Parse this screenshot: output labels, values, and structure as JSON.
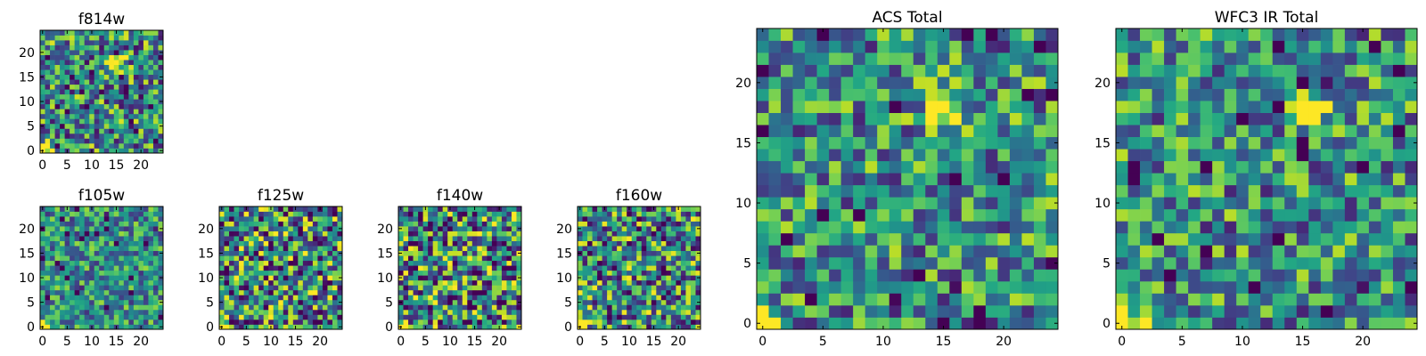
{
  "chart_data": [
    {
      "id": "f814w",
      "type": "heatmap",
      "title": "f814w",
      "xticks": [
        "0",
        "5",
        "10",
        "15",
        "20"
      ],
      "yticks": [
        "0",
        "5",
        "10",
        "15",
        "20"
      ],
      "grid_size": 25,
      "xlim": [
        0,
        24
      ],
      "ylim": [
        0,
        24
      ],
      "colormap": "viridis",
      "peaks": [
        {
          "x": 15,
          "y": 18,
          "value": 1.0
        },
        {
          "x": 0,
          "y": 0,
          "value": 1.0
        }
      ],
      "noise_level": 0.45,
      "seed": 814
    },
    {
      "id": "f105w",
      "type": "heatmap",
      "title": "f105w",
      "xticks": [
        "0",
        "5",
        "10",
        "15",
        "20"
      ],
      "yticks": [
        "0",
        "5",
        "10",
        "15",
        "20"
      ],
      "grid_size": 25,
      "xlim": [
        0,
        24
      ],
      "ylim": [
        0,
        24
      ],
      "colormap": "viridis",
      "peaks": [
        {
          "x": 0,
          "y": 0,
          "value": 1.0
        }
      ],
      "noise_level": 0.35,
      "seed": 105
    },
    {
      "id": "f125w",
      "type": "heatmap",
      "title": "f125w",
      "xticks": [
        "0",
        "5",
        "10",
        "15",
        "20"
      ],
      "yticks": [
        "0",
        "5",
        "10",
        "15",
        "20"
      ],
      "grid_size": 25,
      "xlim": [
        0,
        24
      ],
      "ylim": [
        0,
        24
      ],
      "colormap": "viridis",
      "peaks": [
        {
          "x": 0,
          "y": 0,
          "value": 1.0
        }
      ],
      "noise_level": 0.55,
      "seed": 125
    },
    {
      "id": "f140w",
      "type": "heatmap",
      "title": "f140w",
      "xticks": [
        "0",
        "5",
        "10",
        "15",
        "20"
      ],
      "yticks": [
        "0",
        "5",
        "10",
        "15",
        "20"
      ],
      "grid_size": 25,
      "xlim": [
        0,
        24
      ],
      "ylim": [
        0,
        24
      ],
      "colormap": "viridis",
      "peaks": [
        {
          "x": 0,
          "y": 0,
          "value": 1.0
        }
      ],
      "noise_level": 0.55,
      "seed": 140
    },
    {
      "id": "f160w",
      "type": "heatmap",
      "title": "f160w",
      "xticks": [
        "0",
        "5",
        "10",
        "15",
        "20"
      ],
      "yticks": [
        "0",
        "5",
        "10",
        "15",
        "20"
      ],
      "grid_size": 25,
      "xlim": [
        0,
        24
      ],
      "ylim": [
        0,
        24
      ],
      "colormap": "viridis",
      "peaks": [
        {
          "x": 0,
          "y": 0,
          "value": 1.0
        }
      ],
      "noise_level": 0.5,
      "seed": 160
    },
    {
      "id": "acs-total",
      "type": "heatmap",
      "title": "ACS Total",
      "xticks": [
        "0",
        "5",
        "10",
        "15",
        "20"
      ],
      "yticks": [
        "0",
        "5",
        "10",
        "15",
        "20"
      ],
      "grid_size": 25,
      "xlim": [
        0,
        24
      ],
      "ylim": [
        0,
        24
      ],
      "colormap": "viridis",
      "peaks": [
        {
          "x": 15,
          "y": 18,
          "value": 1.0
        },
        {
          "x": 0,
          "y": 0,
          "value": 1.0
        }
      ],
      "noise_level": 0.4,
      "seed": 7001
    },
    {
      "id": "wfc3-ir-total",
      "type": "heatmap",
      "title": "WFC3 IR Total",
      "xticks": [
        "0",
        "5",
        "10",
        "15",
        "20"
      ],
      "yticks": [
        "0",
        "5",
        "10",
        "15",
        "20"
      ],
      "grid_size": 25,
      "xlim": [
        0,
        24
      ],
      "ylim": [
        0,
        24
      ],
      "colormap": "viridis",
      "peaks": [
        {
          "x": 15,
          "y": 18,
          "value": 1.0
        },
        {
          "x": 0,
          "y": 0,
          "value": 1.0
        }
      ],
      "noise_level": 0.4,
      "seed": 7002
    }
  ]
}
